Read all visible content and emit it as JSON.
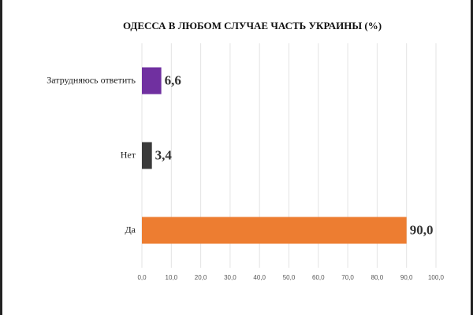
{
  "chart_data": {
    "type": "bar",
    "orientation": "horizontal",
    "title": "ОДЕССА В ЛЮБОМ СЛУЧАЕ ЧАСТЬ УКРАИНЫ (%)",
    "categories": [
      "Затрудняюсь ответить",
      "Нет",
      "Да"
    ],
    "values": [
      6.6,
      3.4,
      90.0
    ],
    "value_labels": [
      "6,6",
      "3,4",
      "90,0"
    ],
    "colors": [
      "#7030a0",
      "#3a3a3a",
      "#ed7d31"
    ],
    "xlim": [
      0,
      100
    ],
    "xticks": [
      {
        "value": 0,
        "label": "0,0"
      },
      {
        "value": 10,
        "label": "10,0"
      },
      {
        "value": 20,
        "label": "20,0"
      },
      {
        "value": 30,
        "label": "30,0"
      },
      {
        "value": 40,
        "label": "40,0"
      },
      {
        "value": 50,
        "label": "50,0"
      },
      {
        "value": 60,
        "label": "60,0"
      },
      {
        "value": 70,
        "label": "70,0"
      },
      {
        "value": 80,
        "label": "80,0"
      },
      {
        "value": 90,
        "label": "90,0"
      },
      {
        "value": 100,
        "label": "100,0"
      }
    ],
    "grid": true
  }
}
